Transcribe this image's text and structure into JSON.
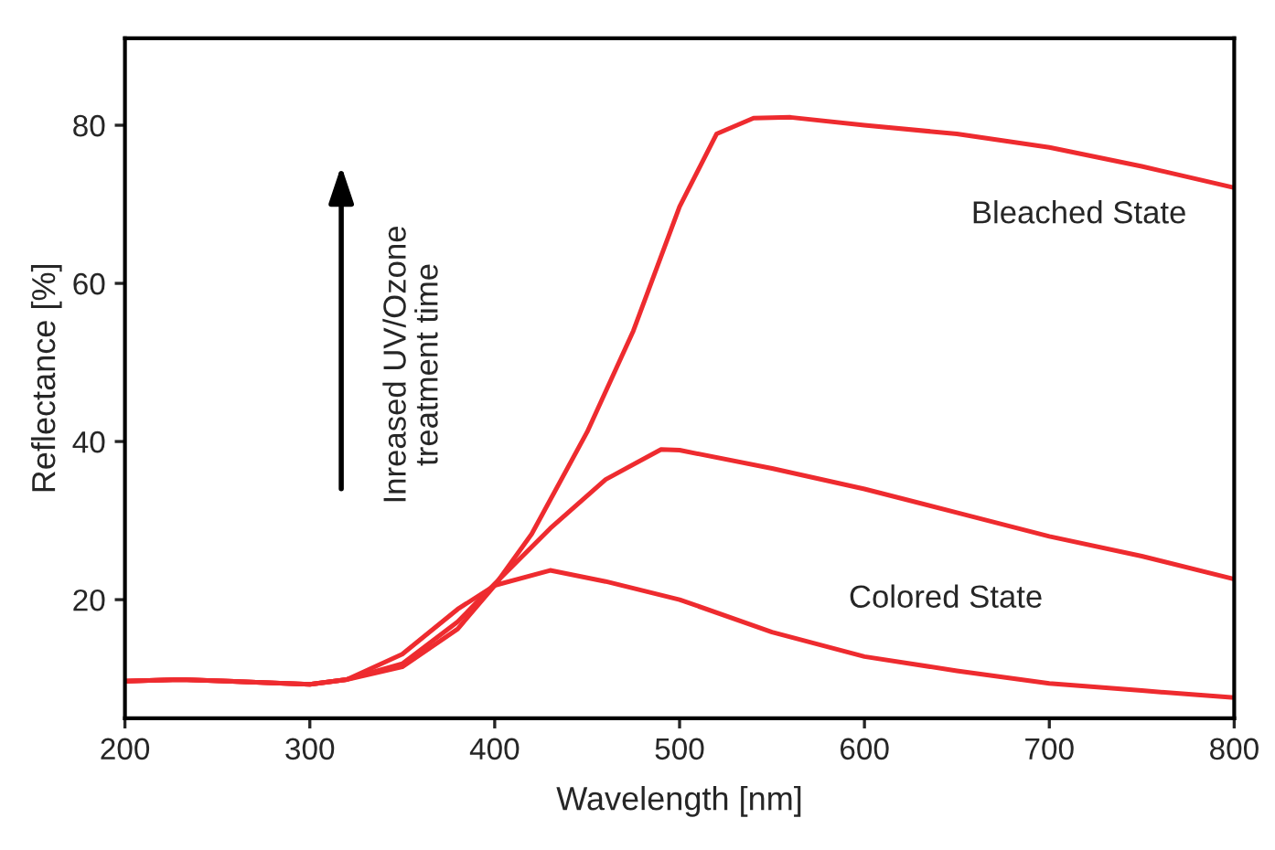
{
  "chart_data": {
    "type": "line",
    "xlabel": "Wavelength [nm]",
    "ylabel": "Reflectance [%]",
    "xlim": [
      200,
      800
    ],
    "xticks": [
      200,
      300,
      400,
      500,
      600,
      700,
      800
    ],
    "ylim": [
      5,
      91
    ],
    "yticks": [
      20,
      40,
      60,
      80
    ],
    "grid": false,
    "legend": false,
    "marker": "none",
    "line_style": "solid",
    "annotations": [
      "Inreased UV/Ozone\ntreatment time",
      "Bleached State",
      "Colored State"
    ],
    "series": [
      {
        "color": "#ee2b2f",
        "x": [
          200,
          230,
          300,
          320,
          350,
          380,
          400,
          420,
          450,
          475,
          500,
          520,
          540,
          560,
          600,
          650,
          700,
          750,
          800
        ],
        "values": [
          9.7,
          9.9,
          9.3,
          9.9,
          11.5,
          16.3,
          21.8,
          28.3,
          41.2,
          54.0,
          69.7,
          78.9,
          80.9,
          81.0,
          80.0,
          78.9,
          77.2,
          74.8,
          72.1
        ]
      },
      {
        "color": "#ee2b2f",
        "x": [
          200,
          230,
          300,
          320,
          350,
          380,
          400,
          430,
          460,
          490,
          500,
          550,
          600,
          650,
          700,
          750,
          800
        ],
        "values": [
          9.7,
          9.9,
          9.3,
          9.9,
          11.9,
          17.2,
          22.0,
          29.0,
          35.2,
          39.0,
          38.9,
          36.6,
          34.0,
          31.0,
          28.0,
          25.5,
          22.6
        ]
      },
      {
        "color": "#ee2b2f",
        "x": [
          200,
          230,
          300,
          320,
          350,
          380,
          400,
          430,
          460,
          500,
          550,
          600,
          650,
          700,
          750,
          800
        ],
        "values": [
          9.7,
          9.9,
          9.3,
          9.9,
          13.1,
          18.8,
          21.8,
          23.7,
          22.3,
          20.0,
          15.9,
          12.8,
          11.0,
          9.4,
          8.5,
          7.6
        ]
      }
    ]
  }
}
